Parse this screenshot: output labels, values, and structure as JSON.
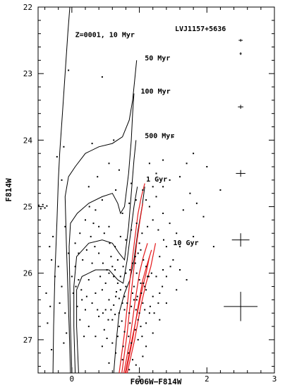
{
  "chart_data": {
    "type": "scatter",
    "title": "LVJ1157+5636",
    "xlabel": "F606W−F814W",
    "ylabel": "F814W",
    "xlim": [
      -0.5,
      3.0
    ],
    "ylim": [
      27.5,
      22.0
    ],
    "x_inverted": false,
    "y_inverted": true,
    "x_ticks": [
      0,
      1,
      2,
      3
    ],
    "y_ticks": [
      22,
      23,
      24,
      25,
      26,
      27
    ],
    "grid": false,
    "legend": "none",
    "colors": {
      "points": "#000000",
      "isochrone": "#000000",
      "rgb_model": "#e41a1c"
    },
    "annotations": [
      {
        "text": "Z=0001, 10 Myr",
        "x": 0.05,
        "y": 22.45
      },
      {
        "text": "50 Myr",
        "x": 1.08,
        "y": 22.8
      },
      {
        "text": "100 Myr",
        "x": 1.02,
        "y": 23.3
      },
      {
        "text": "500 Myr",
        "x": 1.08,
        "y": 23.97
      },
      {
        "text": "1 Gyr",
        "x": 1.1,
        "y": 24.62
      },
      {
        "text": "10 Gyr",
        "x": 1.5,
        "y": 25.58
      }
    ],
    "error_bars": [
      {
        "x": 2.5,
        "mag": 22.5,
        "xerr": 0.03,
        "yerr": 0.02
      },
      {
        "x": 2.5,
        "mag": 22.7,
        "xerr": 0.01,
        "yerr": 0.02
      },
      {
        "x": 2.5,
        "mag": 23.5,
        "xerr": 0.04,
        "yerr": 0.03
      },
      {
        "x": 2.5,
        "mag": 24.5,
        "xerr": 0.07,
        "yerr": 0.05
      },
      {
        "x": 2.5,
        "mag": 25.5,
        "xerr": 0.13,
        "yerr": 0.1
      },
      {
        "x": 2.5,
        "mag": 26.5,
        "xerr": 0.25,
        "yerr": 0.22
      }
    ],
    "isochrones": [
      {
        "age": "10 Myr",
        "points": [
          [
            -0.28,
            27.5
          ],
          [
            -0.27,
            26.8
          ],
          [
            -0.25,
            26.0
          ],
          [
            -0.22,
            25.2
          ],
          [
            -0.2,
            24.6
          ],
          [
            -0.18,
            24.2
          ],
          [
            -0.14,
            23.6
          ],
          [
            -0.1,
            23.0
          ],
          [
            -0.06,
            22.4
          ],
          [
            -0.03,
            22.0
          ]
        ]
      },
      {
        "age": "50 Myr",
        "points": [
          [
            -0.02,
            27.5
          ],
          [
            -0.04,
            26.8
          ],
          [
            -0.06,
            26.2
          ],
          [
            -0.08,
            25.6
          ],
          [
            -0.09,
            25.2
          ],
          [
            -0.1,
            24.85
          ],
          [
            -0.05,
            24.55
          ],
          [
            0.05,
            24.4
          ],
          [
            0.2,
            24.2
          ],
          [
            0.4,
            24.1
          ],
          [
            0.6,
            24.05
          ],
          [
            0.75,
            23.95
          ],
          [
            0.85,
            23.7
          ],
          [
            0.9,
            23.4
          ],
          [
            0.93,
            23.1
          ],
          [
            0.96,
            22.8
          ]
        ]
      },
      {
        "age": "100 Myr",
        "points": [
          [
            0.0,
            27.5
          ],
          [
            -0.02,
            26.8
          ],
          [
            -0.03,
            26.2
          ],
          [
            -0.04,
            25.6
          ],
          [
            -0.02,
            25.25
          ],
          [
            0.08,
            25.1
          ],
          [
            0.25,
            24.95
          ],
          [
            0.45,
            24.85
          ],
          [
            0.6,
            24.8
          ],
          [
            0.68,
            24.95
          ],
          [
            0.72,
            25.1
          ],
          [
            0.78,
            25.0
          ],
          [
            0.84,
            24.5
          ],
          [
            0.88,
            24.0
          ],
          [
            0.9,
            23.6
          ],
          [
            0.92,
            23.3
          ]
        ]
      },
      {
        "age": "500 Myr",
        "points": [
          [
            0.05,
            27.5
          ],
          [
            0.03,
            26.8
          ],
          [
            0.03,
            26.2
          ],
          [
            0.07,
            25.75
          ],
          [
            0.25,
            25.55
          ],
          [
            0.45,
            25.5
          ],
          [
            0.6,
            25.55
          ],
          [
            0.7,
            25.7
          ],
          [
            0.78,
            25.8
          ],
          [
            0.84,
            25.3
          ],
          [
            0.88,
            24.8
          ],
          [
            0.92,
            24.3
          ],
          [
            0.95,
            24.0
          ]
        ]
      },
      {
        "age": "1 Gyr",
        "points": [
          [
            0.1,
            27.5
          ],
          [
            0.07,
            26.8
          ],
          [
            0.07,
            26.25
          ],
          [
            0.15,
            26.05
          ],
          [
            0.35,
            25.95
          ],
          [
            0.55,
            25.95
          ],
          [
            0.68,
            26.1
          ],
          [
            0.76,
            26.15
          ],
          [
            0.82,
            25.8
          ],
          [
            0.87,
            25.4
          ],
          [
            0.92,
            25.0
          ],
          [
            0.97,
            24.7
          ]
        ]
      },
      {
        "age": "1 Gyr (faint)",
        "points": [
          [
            0.62,
            27.5
          ],
          [
            0.66,
            27.0
          ],
          [
            0.7,
            26.6
          ],
          [
            0.78,
            26.3
          ],
          [
            0.86,
            26.1
          ],
          [
            0.92,
            25.8
          ],
          [
            0.98,
            25.35
          ],
          [
            1.04,
            25.0
          ],
          [
            1.08,
            24.7
          ]
        ]
      }
    ],
    "rgb_models": [
      {
        "points": [
          [
            0.7,
            27.5
          ],
          [
            0.78,
            26.9
          ],
          [
            0.86,
            26.1
          ],
          [
            0.93,
            25.5
          ],
          [
            0.98,
            25.1
          ],
          [
            1.03,
            24.85
          ],
          [
            1.08,
            24.65
          ]
        ]
      },
      {
        "points": [
          [
            0.74,
            27.5
          ],
          [
            0.82,
            26.9
          ],
          [
            0.9,
            26.1
          ],
          [
            0.96,
            25.55
          ],
          [
            1.01,
            25.2
          ],
          [
            1.05,
            24.95
          ]
        ]
      },
      {
        "points": [
          [
            0.77,
            27.5
          ],
          [
            0.86,
            27.0
          ],
          [
            0.94,
            26.4
          ],
          [
            1.0,
            26.0
          ],
          [
            1.06,
            25.75
          ],
          [
            1.12,
            25.55
          ]
        ]
      },
      {
        "points": [
          [
            0.8,
            27.5
          ],
          [
            0.9,
            27.0
          ],
          [
            0.98,
            26.5
          ],
          [
            1.05,
            26.1
          ],
          [
            1.12,
            25.85
          ],
          [
            1.18,
            25.65
          ]
        ]
      },
      {
        "points": [
          [
            0.82,
            27.5
          ],
          [
            0.93,
            27.0
          ],
          [
            1.02,
            26.5
          ],
          [
            1.1,
            26.15
          ],
          [
            1.17,
            25.9
          ],
          [
            1.24,
            25.55
          ]
        ]
      },
      {
        "points": [
          [
            0.79,
            27.5
          ],
          [
            0.89,
            27.0
          ],
          [
            0.97,
            26.6
          ],
          [
            1.04,
            26.25
          ],
          [
            1.1,
            26.0
          ],
          [
            1.15,
            25.75
          ]
        ]
      }
    ],
    "points": [
      [
        -0.49,
        24.98
      ],
      [
        -0.46,
        25.03
      ],
      [
        -0.4,
        25.02
      ],
      [
        -0.43,
        24.97
      ],
      [
        -0.37,
        24.99
      ],
      [
        -0.33,
        25.6
      ],
      [
        -0.3,
        25.8
      ],
      [
        -0.28,
        25.45
      ],
      [
        -0.38,
        26.3
      ],
      [
        -0.22,
        24.25
      ],
      [
        -0.15,
        24.6
      ],
      [
        -0.1,
        25.3
      ],
      [
        -0.05,
        25.7
      ],
      [
        0.05,
        25.9
      ],
      [
        0.1,
        26.1
      ],
      [
        0.15,
        26.4
      ],
      [
        0.2,
        26.55
      ],
      [
        0.25,
        26.1
      ],
      [
        0.3,
        25.85
      ],
      [
        0.35,
        26.3
      ],
      [
        0.4,
        26.65
      ],
      [
        0.45,
        26.25
      ],
      [
        0.5,
        26.55
      ],
      [
        0.55,
        26.0
      ],
      [
        0.6,
        26.7
      ],
      [
        0.65,
        26.35
      ],
      [
        0.7,
        26.8
      ],
      [
        0.75,
        26.45
      ],
      [
        0.8,
        26.2
      ],
      [
        0.85,
        26.6
      ],
      [
        0.9,
        26.3
      ],
      [
        0.95,
        26.55
      ],
      [
        1.0,
        26.1
      ],
      [
        1.05,
        26.45
      ],
      [
        1.1,
        26.25
      ],
      [
        1.15,
        26.6
      ],
      [
        1.2,
        26.35
      ],
      [
        1.25,
        26.05
      ],
      [
        1.3,
        26.3
      ],
      [
        1.35,
        25.95
      ],
      [
        0.6,
        25.9
      ],
      [
        0.62,
        26.05
      ],
      [
        0.68,
        26.15
      ],
      [
        0.72,
        26.25
      ],
      [
        0.78,
        26.35
      ],
      [
        0.82,
        26.45
      ],
      [
        0.88,
        26.5
      ],
      [
        0.92,
        26.2
      ],
      [
        0.98,
        26.7
      ],
      [
        1.02,
        26.8
      ],
      [
        0.7,
        26.6
      ],
      [
        0.74,
        26.72
      ],
      [
        0.78,
        26.88
      ],
      [
        0.84,
        26.95
      ],
      [
        0.88,
        27.05
      ],
      [
        0.92,
        26.4
      ],
      [
        0.96,
        26.0
      ],
      [
        1.06,
        26.15
      ],
      [
        1.12,
        26.05
      ],
      [
        1.18,
        26.0
      ],
      [
        0.55,
        26.4
      ],
      [
        0.58,
        26.55
      ],
      [
        0.64,
        26.62
      ],
      [
        0.66,
        26.28
      ],
      [
        0.86,
        25.95
      ],
      [
        0.9,
        25.85
      ],
      [
        0.94,
        25.75
      ],
      [
        0.97,
        26.35
      ],
      [
        1.03,
        26.3
      ],
      [
        1.08,
        26.55
      ],
      [
        0.5,
        26.15
      ],
      [
        0.42,
        26.05
      ],
      [
        0.48,
        26.85
      ],
      [
        0.52,
        26.98
      ],
      [
        0.6,
        27.05
      ],
      [
        0.68,
        26.95
      ],
      [
        0.76,
        27.1
      ],
      [
        0.84,
        27.2
      ],
      [
        0.9,
        27.3
      ],
      [
        0.98,
        27.0
      ],
      [
        0.2,
        25.2
      ],
      [
        0.35,
        25.05
      ],
      [
        0.45,
        24.9
      ],
      [
        0.55,
        25.3
      ],
      [
        0.65,
        24.75
      ],
      [
        0.75,
        25.1
      ],
      [
        0.85,
        24.95
      ],
      [
        0.95,
        24.9
      ],
      [
        1.05,
        24.75
      ],
      [
        1.15,
        25.0
      ],
      [
        1.25,
        24.85
      ],
      [
        1.35,
        25.1
      ],
      [
        1.45,
        25.25
      ],
      [
        1.55,
        25.4
      ],
      [
        1.65,
        25.05
      ],
      [
        1.75,
        24.8
      ],
      [
        1.85,
        24.95
      ],
      [
        1.95,
        25.15
      ],
      [
        1.45,
        24.6
      ],
      [
        1.6,
        24.55
      ],
      [
        1.7,
        24.35
      ],
      [
        1.8,
        24.2
      ],
      [
        1.5,
        23.95
      ],
      [
        1.35,
        24.3
      ],
      [
        1.3,
        25.75
      ],
      [
        1.4,
        25.6
      ],
      [
        1.5,
        25.8
      ],
      [
        1.6,
        25.95
      ],
      [
        1.7,
        26.1
      ],
      [
        1.55,
        26.25
      ],
      [
        1.4,
        26.45
      ],
      [
        1.3,
        26.7
      ],
      [
        1.2,
        26.9
      ],
      [
        1.1,
        27.1
      ],
      [
        1.05,
        27.25
      ],
      [
        0.95,
        27.38
      ],
      [
        0.85,
        27.45
      ],
      [
        0.75,
        27.3
      ],
      [
        0.65,
        27.2
      ],
      [
        0.55,
        27.35
      ],
      [
        0.45,
        27.1
      ],
      [
        0.35,
        26.95
      ],
      [
        0.25,
        26.8
      ],
      [
        0.18,
        26.95
      ],
      [
        0.12,
        26.7
      ],
      [
        0.08,
        26.5
      ],
      [
        0.02,
        26.3
      ],
      [
        0.0,
        26.05
      ],
      [
        0.05,
        25.55
      ],
      [
        0.12,
        25.4
      ],
      [
        -0.05,
        22.95
      ],
      [
        0.45,
        23.05
      ],
      [
        -0.12,
        24.1
      ],
      [
        0.3,
        24.05
      ],
      [
        0.62,
        24.0
      ],
      [
        0.88,
        24.65
      ],
      [
        0.7,
        24.45
      ],
      [
        0.55,
        24.35
      ],
      [
        0.38,
        24.55
      ],
      [
        0.25,
        24.7
      ],
      [
        1.0,
        25.55
      ],
      [
        1.02,
        25.65
      ],
      [
        0.98,
        25.7
      ],
      [
        0.94,
        25.85
      ],
      [
        1.06,
        25.8
      ],
      [
        1.1,
        25.9
      ],
      [
        1.14,
        26.05
      ],
      [
        1.08,
        26.2
      ],
      [
        1.02,
        26.15
      ],
      [
        0.96,
        26.4
      ],
      [
        0.8,
        26.0
      ],
      [
        0.76,
        25.9
      ],
      [
        0.72,
        26.05
      ],
      [
        0.68,
        25.8
      ],
      [
        0.64,
        25.95
      ],
      [
        0.58,
        25.75
      ],
      [
        0.52,
        25.95
      ],
      [
        0.46,
        25.85
      ],
      [
        0.4,
        25.7
      ],
      [
        0.34,
        25.6
      ],
      [
        0.28,
        25.45
      ],
      [
        0.22,
        25.65
      ],
      [
        0.16,
        25.8
      ],
      [
        0.1,
        25.7
      ],
      [
        0.06,
        26.2
      ],
      [
        0.14,
        26.25
      ],
      [
        0.22,
        26.35
      ],
      [
        0.3,
        26.45
      ],
      [
        0.38,
        26.55
      ],
      [
        0.46,
        26.6
      ],
      [
        0.54,
        26.7
      ],
      [
        0.62,
        26.48
      ],
      [
        0.7,
        26.38
      ],
      [
        0.78,
        26.55
      ],
      [
        0.86,
        26.75
      ],
      [
        0.94,
        26.85
      ],
      [
        1.0,
        26.6
      ],
      [
        1.04,
        26.95
      ],
      [
        1.1,
        26.75
      ],
      [
        1.16,
        26.5
      ],
      [
        1.22,
        26.6
      ],
      [
        1.28,
        26.45
      ],
      [
        1.34,
        26.2
      ],
      [
        1.4,
        26.05
      ],
      [
        1.46,
        25.9
      ],
      [
        1.36,
        25.5
      ],
      [
        1.28,
        25.35
      ],
      [
        1.2,
        25.2
      ],
      [
        1.12,
        25.3
      ],
      [
        1.04,
        25.4
      ],
      [
        0.96,
        25.25
      ],
      [
        0.88,
        25.35
      ],
      [
        0.8,
        25.5
      ],
      [
        0.72,
        25.45
      ],
      [
        0.64,
        25.6
      ],
      [
        0.56,
        25.55
      ],
      [
        0.48,
        25.4
      ],
      [
        0.4,
        25.3
      ],
      [
        0.32,
        25.25
      ],
      [
        0.26,
        25.0
      ],
      [
        -0.2,
        25.9
      ],
      [
        -0.15,
        26.2
      ],
      [
        -0.1,
        26.6
      ],
      [
        -0.08,
        26.9
      ],
      [
        -0.12,
        27.05
      ],
      [
        -0.18,
        26.45
      ],
      [
        -0.25,
        26.05
      ],
      [
        -0.32,
        26.5
      ],
      [
        -0.36,
        26.75
      ],
      [
        -0.3,
        27.15
      ],
      [
        1.15,
        24.35
      ],
      [
        1.25,
        24.5
      ],
      [
        1.35,
        24.7
      ],
      [
        1.2,
        24.7
      ],
      [
        1.1,
        24.9
      ],
      [
        1.6,
        25.6
      ],
      [
        1.8,
        25.45
      ],
      [
        2.1,
        25.6
      ],
      [
        2.2,
        24.75
      ],
      [
        2.0,
        24.4
      ]
    ]
  }
}
